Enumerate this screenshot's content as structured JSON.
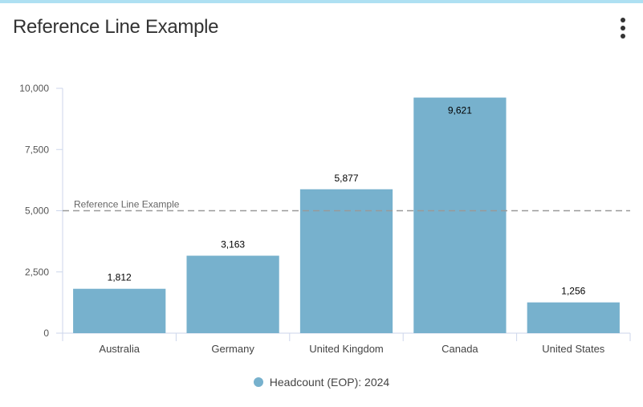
{
  "header": {
    "title": "Reference Line Example",
    "menu_icon": "more-vertical-icon"
  },
  "colors": {
    "accent": "#aee0f2",
    "bar": "#77b1cd",
    "reference_line": "#999999",
    "text": "#333333"
  },
  "chart_data": {
    "type": "bar",
    "categories": [
      "Australia",
      "Germany",
      "United Kingdom",
      "Canada",
      "United States"
    ],
    "series": [
      {
        "name": "Headcount (EOP): 2024",
        "values": [
          1812,
          3163,
          5877,
          9621,
          1256
        ]
      }
    ],
    "data_labels": [
      "1,812",
      "3,163",
      "5,877",
      "9,621",
      "1,256"
    ],
    "y_ticks": [
      0,
      2500,
      5000,
      7500,
      10000
    ],
    "y_tick_labels": [
      "0",
      "2,500",
      "5,000",
      "7,500",
      "10,000"
    ],
    "ylim": [
      0,
      10000
    ],
    "xlabel": "",
    "ylabel": "",
    "reference_line": {
      "label": "Reference Line Example",
      "value": 5000
    },
    "legend_position": "bottom",
    "grid": false
  }
}
